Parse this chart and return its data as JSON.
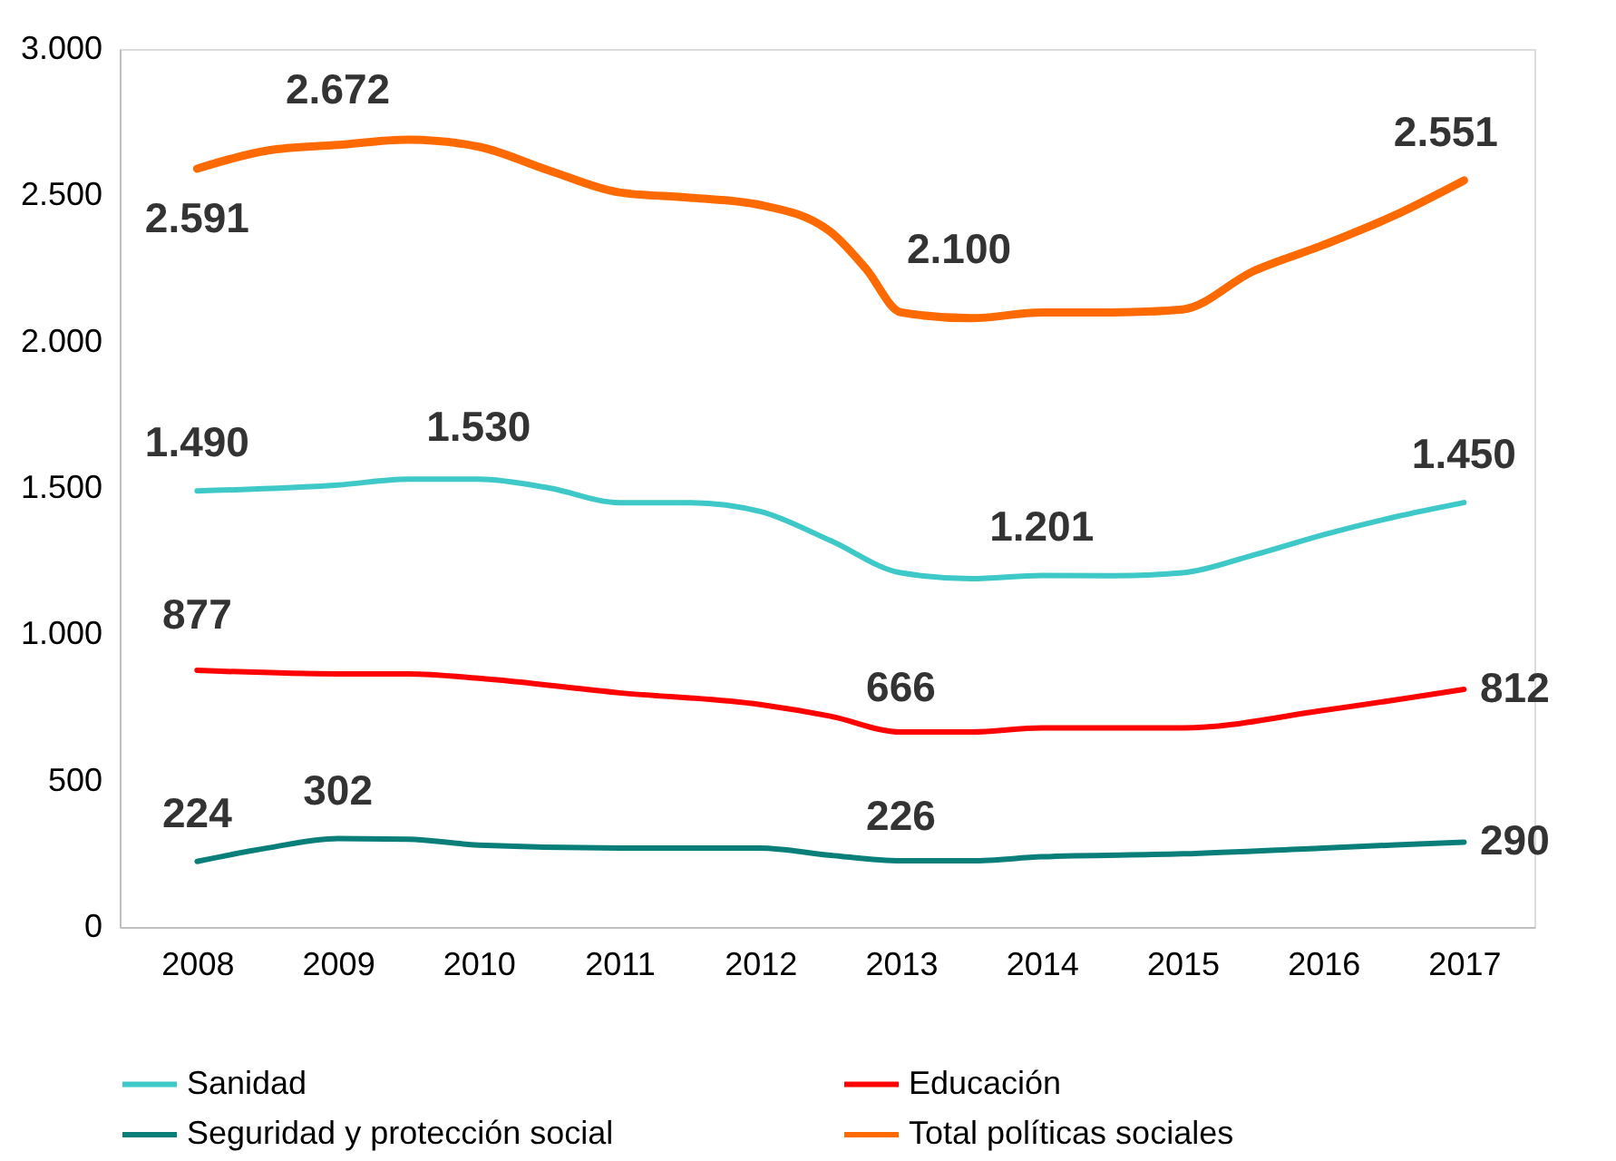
{
  "chart_data": {
    "type": "line",
    "xlim": [
      2007.45,
      2017.5
    ],
    "xticks": [
      2008,
      2009,
      2010,
      2011,
      2012,
      2013,
      2014,
      2015,
      2016,
      2017
    ],
    "ylim": [
      0,
      3000
    ],
    "yticks": [
      0,
      {
        "value": 500,
        "label": "500"
      },
      {
        "value": 1000,
        "label": "1.000"
      },
      {
        "value": 1500,
        "label": "1.500"
      },
      {
        "value": 2000,
        "label": "2.000"
      },
      {
        "value": 2500,
        "label": "2.500"
      },
      {
        "value": 3000,
        "label": "3.000"
      }
    ],
    "grid": false,
    "legend": "bottom",
    "marker": "none",
    "line_style": "solid",
    "series": [
      {
        "name": "Sanidad",
        "color": "#3fc8c8",
        "x": [
          2008,
          2009,
          2009.5,
          2010,
          2010.5,
          2011,
          2011.5,
          2012,
          2012.5,
          2013,
          2013.5,
          2014,
          2014.5,
          2015,
          2015.5,
          2016,
          2016.5,
          2017
        ],
        "values": [
          1490,
          1510,
          1530,
          1530,
          1500,
          1450,
          1450,
          1420,
          1320,
          1210,
          1190,
          1201,
          1200,
          1210,
          1270,
          1340,
          1400,
          1450
        ]
      },
      {
        "name": "Educación",
        "color": "#ff0000",
        "x": [
          2008,
          2009,
          2009.5,
          2010,
          2011,
          2012,
          2012.5,
          2013,
          2013.5,
          2014,
          2015,
          2016,
          2017
        ],
        "values": [
          877,
          865,
          865,
          850,
          800,
          760,
          720,
          666,
          666,
          680,
          680,
          740,
          812
        ]
      },
      {
        "name": "Seguridad y protección social",
        "color": "#0a7f7a",
        "x": [
          2008,
          2008.5,
          2009,
          2009.5,
          2010,
          2011,
          2012,
          2012.5,
          2013,
          2013.5,
          2014,
          2015,
          2016,
          2017
        ],
        "values": [
          224,
          270,
          302,
          300,
          280,
          270,
          270,
          245,
          226,
          226,
          240,
          250,
          270,
          290
        ]
      },
      {
        "name": "Total políticas sociales",
        "color": "#ff6a00",
        "x": [
          2008,
          2008.5,
          2009,
          2009.5,
          2010,
          2010.5,
          2011,
          2011.5,
          2012,
          2012.5,
          2012.75,
          2013,
          2013.5,
          2014,
          2014.5,
          2015,
          2015.5,
          2016,
          2016.5,
          2017
        ],
        "values": [
          2591,
          2653,
          2672,
          2690,
          2666,
          2585,
          2510,
          2492,
          2467,
          2375,
          2250,
          2100,
          2080,
          2100,
          2100,
          2110,
          2240,
          2330,
          2430,
          2551
        ]
      }
    ],
    "annotations": [
      {
        "text": "2.591",
        "x": 2008,
        "y": 2591
      },
      {
        "text": "2.672",
        "x": 2009,
        "y": 2672
      },
      {
        "text": "2.100",
        "x": 2013,
        "y": 2100
      },
      {
        "text": "2.551",
        "x": 2017,
        "y": 2551
      },
      {
        "text": "1.490",
        "x": 2008,
        "y": 1490
      },
      {
        "text": "1.530",
        "x": 2010,
        "y": 1530
      },
      {
        "text": "1.201",
        "x": 2014,
        "y": 1201
      },
      {
        "text": "1.450",
        "x": 2017,
        "y": 1450
      },
      {
        "text": "877",
        "x": 2008,
        "y": 877
      },
      {
        "text": "666",
        "x": 2013,
        "y": 666
      },
      {
        "text": "812",
        "x": 2017,
        "y": 812
      },
      {
        "text": "224",
        "x": 2008,
        "y": 224
      },
      {
        "text": "302",
        "x": 2009,
        "y": 302
      },
      {
        "text": "226",
        "x": 2013,
        "y": 226
      },
      {
        "text": "290",
        "x": 2017,
        "y": 290
      }
    ]
  }
}
